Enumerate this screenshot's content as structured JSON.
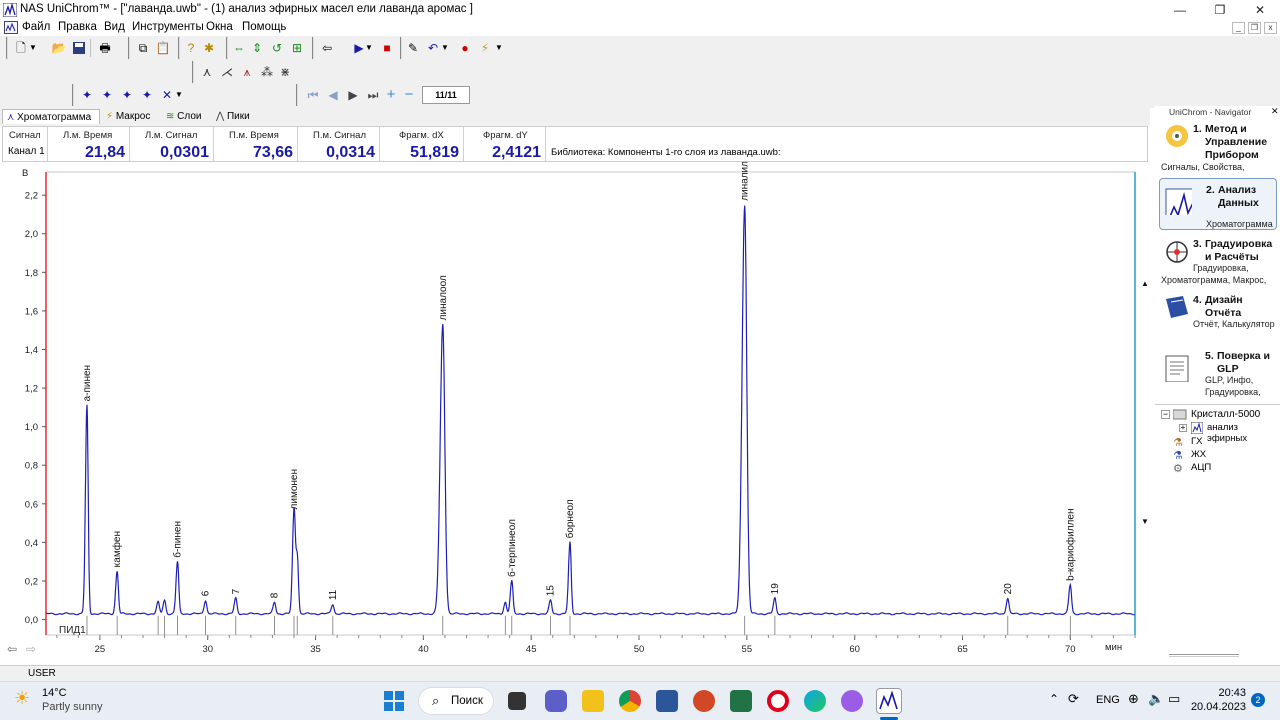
{
  "window": {
    "title": "NAS UniChrom™ - [\"лаванда.uwb\" - (1) анализ эфирных масел ели лаванда  аромас ]",
    "minimize": "—",
    "maximize": "❐",
    "close": "✕"
  },
  "menu": {
    "items": [
      "Файл",
      "Правка",
      "Вид",
      "Инструменты",
      "Окна",
      "Помощь"
    ]
  },
  "toolbar": {
    "page_indicator": "11/11"
  },
  "tabs": [
    "Хроматограмма",
    "Макрос",
    "Слои",
    "Пики"
  ],
  "info_panel": {
    "row_header": "Сигнал",
    "row_label": "Канал 1",
    "columns": [
      {
        "header": "Л.м. Время",
        "value": "21,84"
      },
      {
        "header": "Л.м. Сигнал",
        "value": "0,0301"
      },
      {
        "header": "П.м. Время",
        "value": "73,66"
      },
      {
        "header": "П.м. Сигнал",
        "value": "0,0314"
      },
      {
        "header": "Фрагм. dX",
        "value": "51,819"
      },
      {
        "header": "Фрагм. dY",
        "value": "2,4121"
      }
    ],
    "library_text": "Библиотека: Компоненты 1-го слоя из лаванда.uwb:"
  },
  "chart_data": {
    "type": "line",
    "ylabel": "В",
    "xlabel": "мин",
    "xlim": [
      22.5,
      73.0
    ],
    "ylim": [
      -0.08,
      2.32
    ],
    "x_ticks": [
      25,
      30,
      35,
      40,
      45,
      50,
      55,
      60,
      65,
      70
    ],
    "y_ticks": [
      0.0,
      0.2,
      0.4,
      0.6,
      0.8,
      1.0,
      1.2,
      1.4,
      1.6,
      1.8,
      2.0,
      2.2
    ],
    "x_tick_labels": [
      "25",
      "30",
      "35",
      "40",
      "45",
      "50",
      "55",
      "60",
      "65",
      "70"
    ],
    "y_tick_labels": [
      "0,0",
      "0,2",
      "0,4",
      "0,6",
      "0,8",
      "1,0",
      "1,2",
      "1,4",
      "1,6",
      "1,8",
      "2,0",
      "2,2"
    ],
    "baseline": 0.03,
    "channel_label": "ПИД1",
    "peaks": [
      {
        "rt": 24.4,
        "height": 1.08,
        "label": "а-пинен"
      },
      {
        "rt": 25.8,
        "height": 0.22,
        "label": "камфен"
      },
      {
        "rt": 27.7,
        "height": 0.06,
        "label": ""
      },
      {
        "rt": 28.0,
        "height": 0.07,
        "label": ""
      },
      {
        "rt": 28.6,
        "height": 0.27,
        "label": "б-пинен"
      },
      {
        "rt": 29.9,
        "height": 0.07,
        "label": "6"
      },
      {
        "rt": 31.3,
        "height": 0.08,
        "label": "7"
      },
      {
        "rt": 33.1,
        "height": 0.06,
        "label": "8"
      },
      {
        "rt": 34.0,
        "height": 0.52,
        "label": "лимонен"
      },
      {
        "rt": 34.15,
        "height": 0.31,
        "label": ""
      },
      {
        "rt": 35.8,
        "height": 0.05,
        "label": "11"
      },
      {
        "rt": 40.9,
        "height": 1.5,
        "label": "линалоол"
      },
      {
        "rt": 43.8,
        "height": 0.06,
        "label": ""
      },
      {
        "rt": 44.1,
        "height": 0.17,
        "label": "б-терпинеол"
      },
      {
        "rt": 45.9,
        "height": 0.07,
        "label": "15"
      },
      {
        "rt": 46.8,
        "height": 0.37,
        "label": "борнеол"
      },
      {
        "rt": 54.9,
        "height": 2.12,
        "label": "линалилацетат"
      },
      {
        "rt": 56.3,
        "height": 0.08,
        "label": "19"
      },
      {
        "rt": 67.1,
        "height": 0.08,
        "label": "20"
      },
      {
        "rt": 70.0,
        "height": 0.15,
        "label": "b-кариофиллен"
      }
    ]
  },
  "navigator": {
    "title": "UniChrom - Navigator",
    "items": [
      {
        "num": "1.",
        "title": "Метод и Управление Прибором",
        "desc": "Сигналы, Свойства,"
      },
      {
        "num": "2.",
        "title": "Анализ Данных",
        "desc": "Хроматограмма"
      },
      {
        "num": "3.",
        "title": "Градуировка и Расчёты",
        "desc": "Градуировка, Хроматограмма, Макрос,"
      },
      {
        "num": "4.",
        "title": "Дизайн Отчёта",
        "desc": "Отчёт, Калькулятор"
      },
      {
        "num": "5.",
        "title": "Поверка и GLP",
        "desc": "GLP, Инфо, Градуировка,"
      }
    ],
    "tree": {
      "root": "Кристалл-5000",
      "children": [
        "анализ эфирных",
        "ГХ",
        "ЖХ",
        "АЦП"
      ]
    }
  },
  "status_bar": {
    "user": "USER"
  },
  "taskbar": {
    "weather_temp": "14°C",
    "weather_desc": "Partly sunny",
    "search_label": "Поиск",
    "language": "ENG",
    "time": "20:43",
    "date": "20.04.2023",
    "notification_count": "2"
  },
  "colors": {
    "trace": "#1f1fb4",
    "value_text": "#1a1aa8",
    "left_axis_line": "#e0303a",
    "right_marker": "#20a0c0",
    "accent_blue": "#0067c0"
  }
}
